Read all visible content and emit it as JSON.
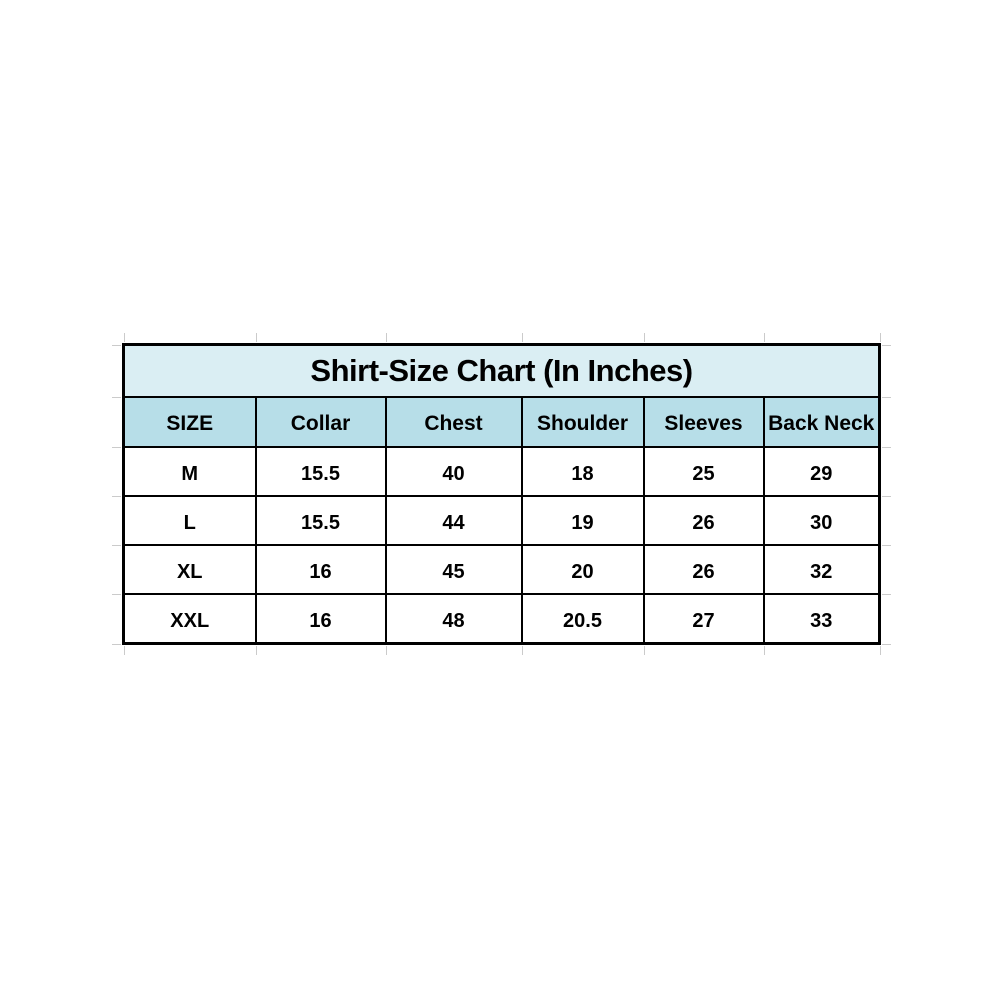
{
  "chart_data": {
    "type": "table",
    "title": "Shirt-Size Chart (In Inches)",
    "units": "inches",
    "columns": [
      "SIZE",
      "Collar",
      "Chest",
      "Shoulder",
      "Sleeves",
      "Back Neck"
    ],
    "rows": [
      [
        "M",
        "15.5",
        "40",
        "18",
        "25",
        "29"
      ],
      [
        "L",
        "15.5",
        "44",
        "19",
        "26",
        "30"
      ],
      [
        "XL",
        "16",
        "45",
        "20",
        "26",
        "32"
      ],
      [
        "XXL",
        "16",
        "48",
        "20.5",
        "27",
        "33"
      ]
    ]
  },
  "colors": {
    "page_bg": "#ffffff",
    "title_bg": "#daeef3",
    "header_bg": "#b7dee8",
    "border": "#000000",
    "text": "#000000",
    "gridline": "#c2c2c2"
  }
}
